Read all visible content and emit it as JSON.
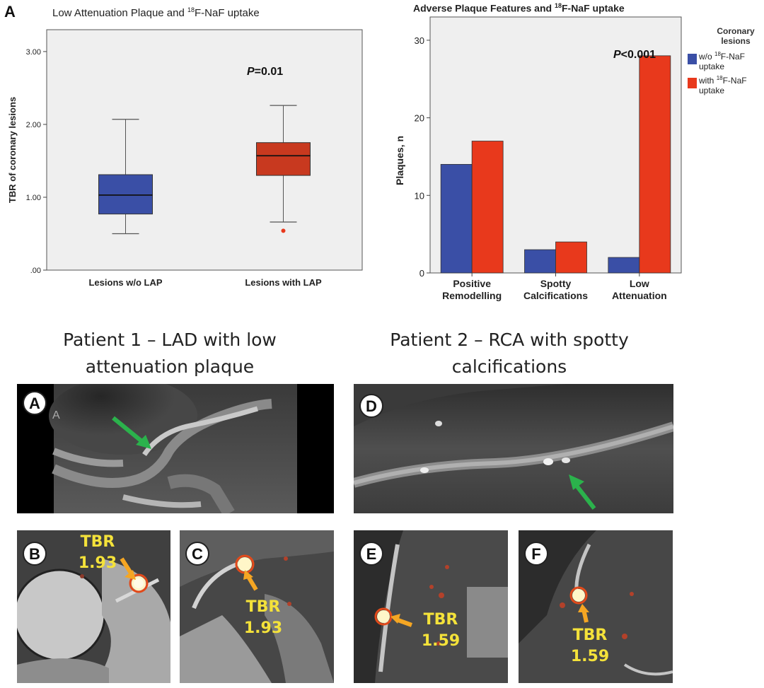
{
  "figure": {
    "panel_a_letter": "A",
    "boxplot": {
      "title": "Low Attenuation Plaque and ",
      "title_sup": "18",
      "title_end": "F-NaF uptake",
      "p_label": "P",
      "p_value": "=0.01"
    },
    "barchart": {
      "title": "Adverse Plaque Features and ",
      "title_sup": "18",
      "title_end": "F-NaF uptake",
      "p_label": "P",
      "p_value": "<0.001",
      "legend_title_line1": "Coronary",
      "legend_title_line2": "lesions",
      "legend_items": [
        {
          "line1a": "w/o ",
          "sup": "18",
          "line1b": "F-NaF",
          "line2": "uptake",
          "color": "#3a4fa6"
        },
        {
          "line1a": "with ",
          "sup": "18",
          "line1b": "F-NaF",
          "line2": "uptake",
          "color": "#e8391c"
        }
      ]
    },
    "patient1_title_line1": "Patient 1 – LAD with low",
    "patient1_title_line2": "attenuation plaque",
    "patient2_title_line1": "Patient 2 – RCA with spotty",
    "patient2_title_line2": "calcifications",
    "images": {
      "A": {
        "letter": "A",
        "small_letter": "A"
      },
      "B": {
        "letter": "B",
        "tbr_label": "TBR",
        "tbr_value": "1.93"
      },
      "C": {
        "letter": "C",
        "tbr_label": "TBR",
        "tbr_value": "1.93"
      },
      "D": {
        "letter": "D"
      },
      "E": {
        "letter": "E",
        "tbr_label": "TBR",
        "tbr_value": "1.59"
      },
      "F": {
        "letter": "F",
        "tbr_label": "TBR",
        "tbr_value": "1.59"
      }
    },
    "colors": {
      "blue": "#3a4fa6",
      "red": "#e8391c",
      "arrow_green": "#2bb24c",
      "arrow_orange": "#f5a623",
      "tbr_yellow": "#f4e23a"
    }
  },
  "chart_data": [
    {
      "type": "box",
      "title": "Low Attenuation Plaque and 18F-NaF uptake",
      "ylabel": "TBR of coronary lesions",
      "xlabel": "",
      "ylim": [
        0,
        3.3
      ],
      "yticks": [
        0,
        1,
        2,
        3
      ],
      "ytick_labels": [
        ".00",
        "1.00",
        "2.00",
        "3.00"
      ],
      "categories": [
        "Lesions w/o LAP",
        "Lesions with LAP"
      ],
      "boxes": [
        {
          "name": "Lesions w/o LAP",
          "min": 0.5,
          "q1": 0.77,
          "median": 1.03,
          "q3": 1.31,
          "max": 2.07,
          "outliers": [],
          "color": "#3a4fa6"
        },
        {
          "name": "Lesions with LAP",
          "min": 0.66,
          "q1": 1.3,
          "median": 1.57,
          "q3": 1.75,
          "max": 2.26,
          "outliers": [
            0.54
          ],
          "color": "#c8391f"
        }
      ],
      "annotation": "P=0.01"
    },
    {
      "type": "bar",
      "title": "Adverse Plaque Features and 18F-NaF uptake",
      "ylabel": "Plaques, n",
      "xlabel": "",
      "ylim": [
        0,
        33
      ],
      "yticks": [
        0,
        10,
        20,
        30
      ],
      "categories": [
        [
          "Positive",
          "Remodelling"
        ],
        [
          "Spotty",
          "Calcifications"
        ],
        [
          "Low",
          "Attenuation"
        ]
      ],
      "series": [
        {
          "name": "w/o 18F-NaF uptake",
          "values": [
            14,
            3,
            2
          ],
          "color": "#3a4fa6"
        },
        {
          "name": "with 18F-NaF uptake",
          "values": [
            17,
            4,
            28
          ],
          "color": "#e8391c"
        }
      ],
      "legend_title": "Coronary lesions",
      "legend_position": "right",
      "annotation": "P<0.001"
    }
  ]
}
